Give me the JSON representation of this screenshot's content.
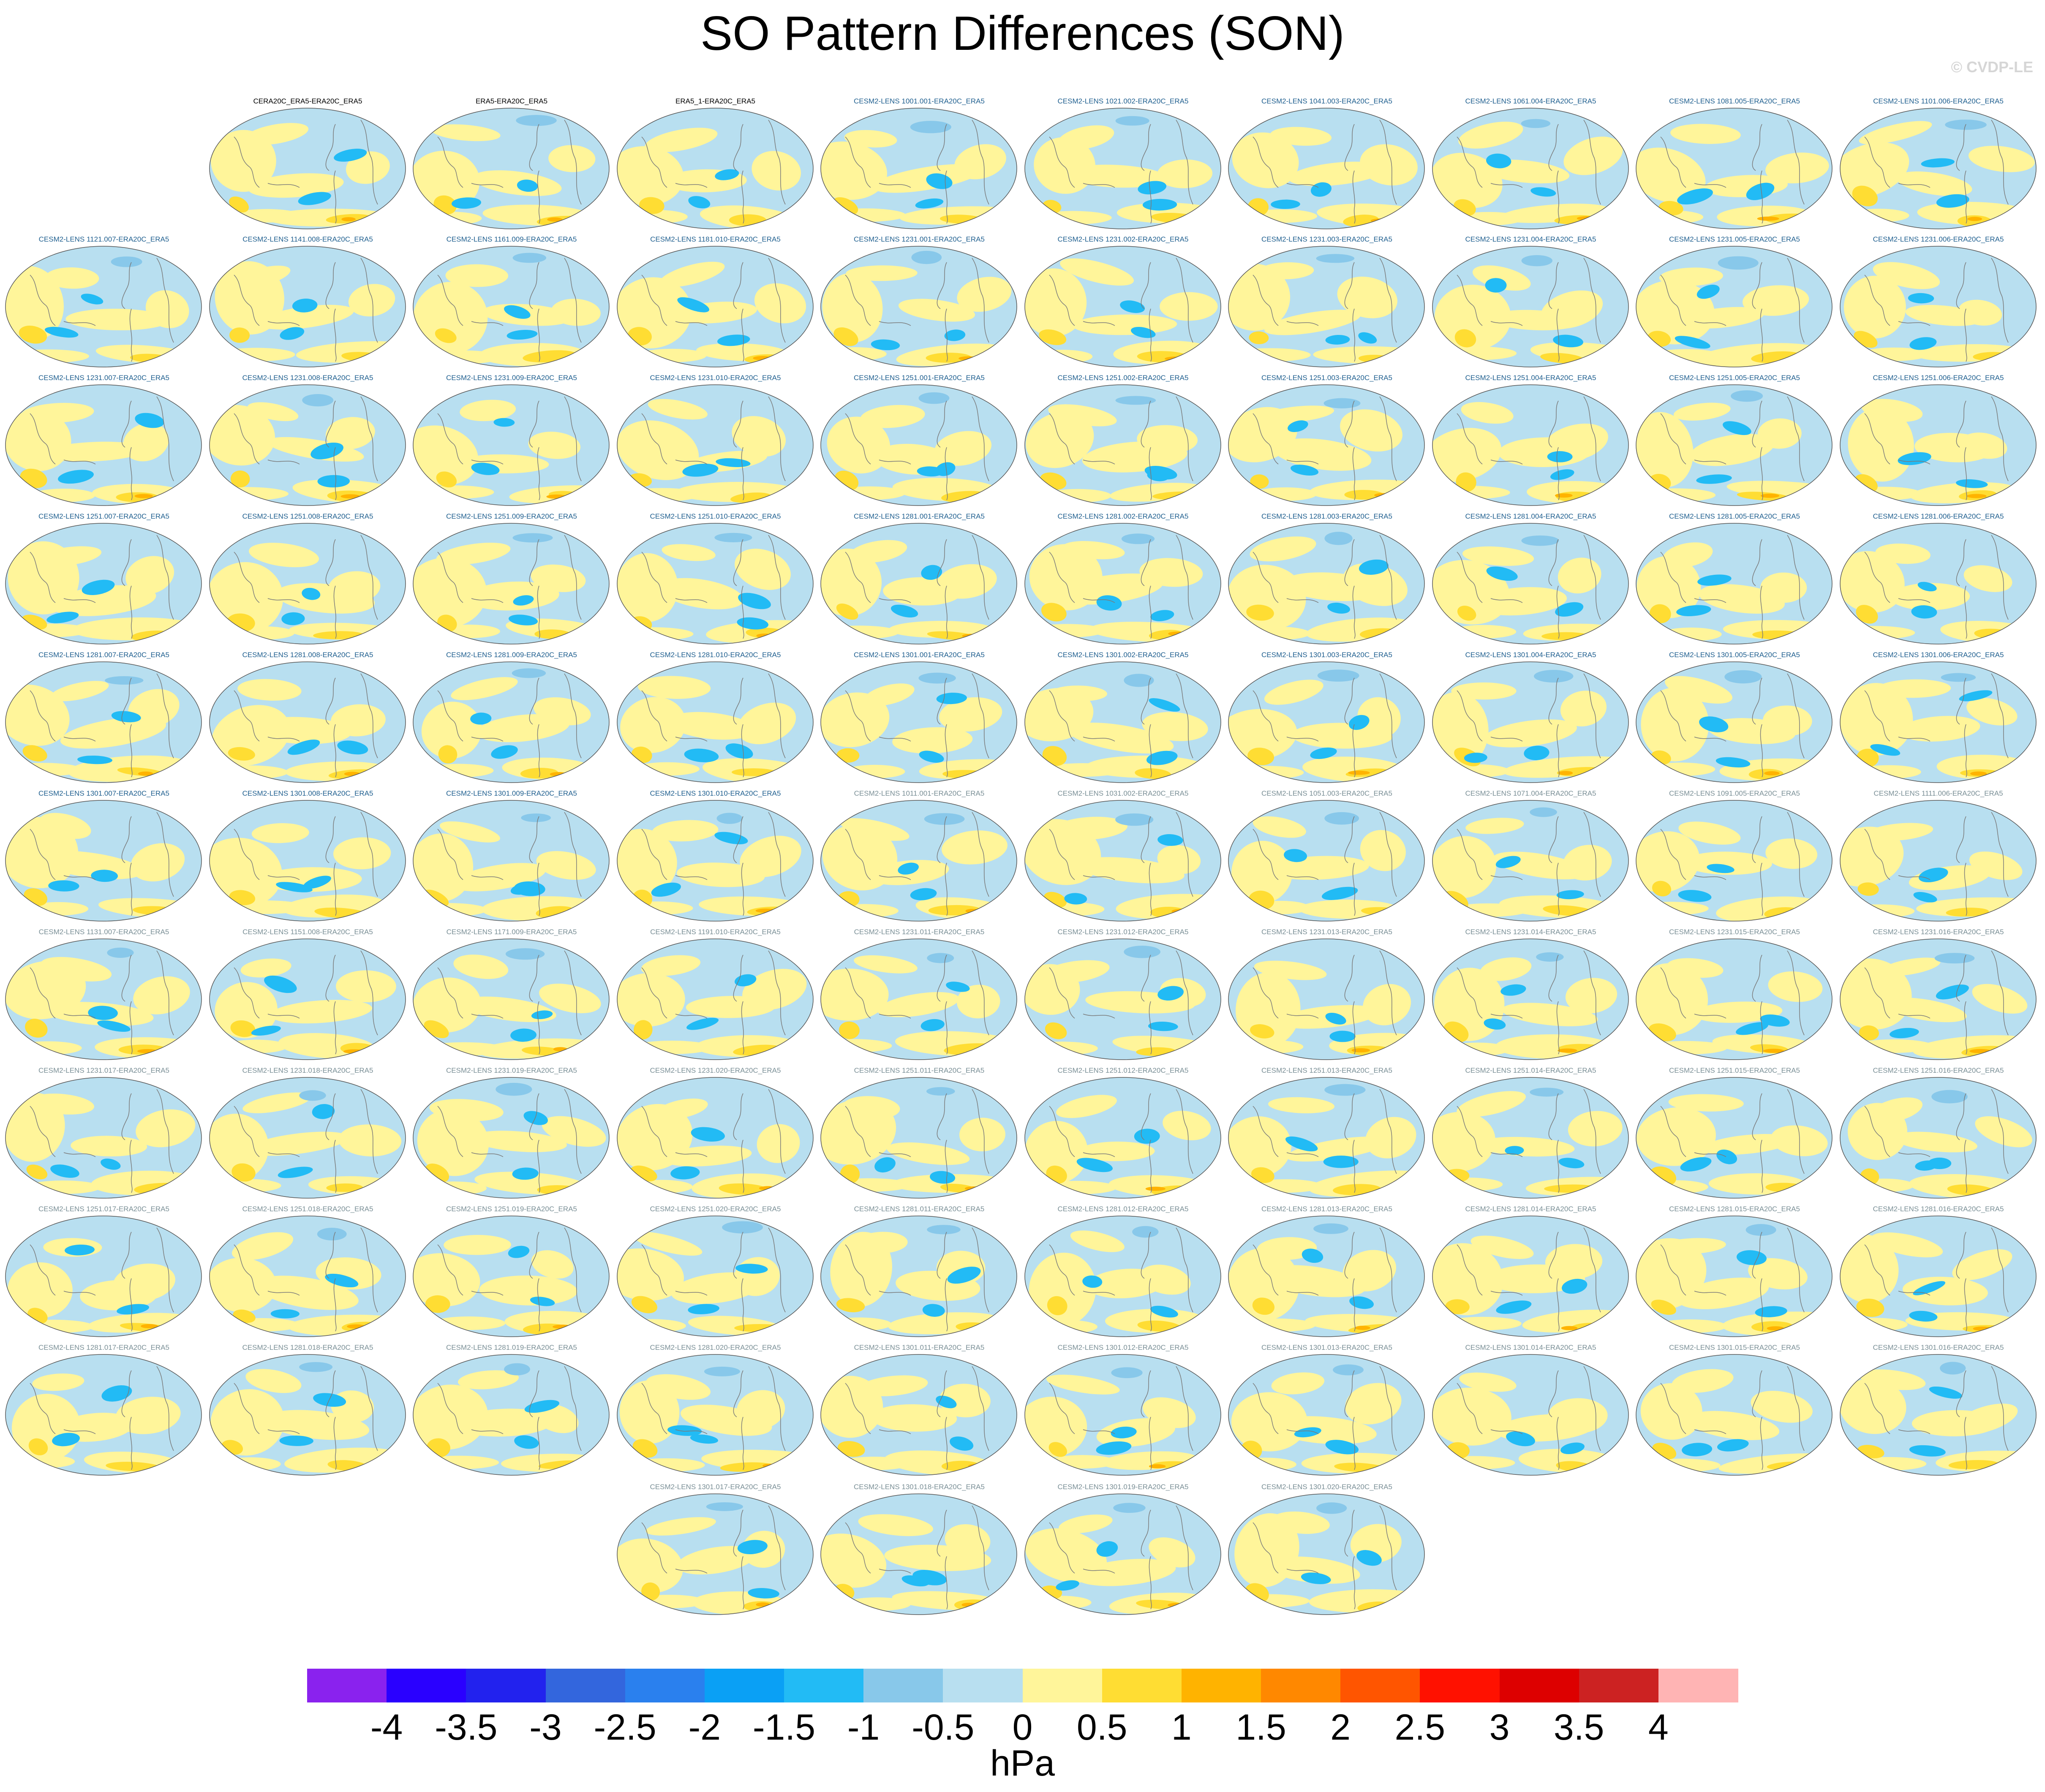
{
  "title": "SO Pattern Differences (SON)",
  "watermark": "© CVDP-LE",
  "colors": {
    "ocean_base": "#b8dff0",
    "land_outline": "#7a7a7a",
    "label_obs": "#000000",
    "label_group1": "#1f5f8f",
    "label_group2": "#7a8f96"
  },
  "panels": [
    {
      "label": "CERA20C_ERA5-ERA20C_ERA5",
      "group": "obs"
    },
    {
      "label": "ERA5-ERA20C_ERA5",
      "group": "obs"
    },
    {
      "label": "ERA5_1-ERA20C_ERA5",
      "group": "obs"
    },
    {
      "label": "CESM2-LENS 1001.001-ERA20C_ERA5",
      "group": "g1"
    },
    {
      "label": "CESM2-LENS 1021.002-ERA20C_ERA5",
      "group": "g1"
    },
    {
      "label": "CESM2-LENS 1041.003-ERA20C_ERA5",
      "group": "g1"
    },
    {
      "label": "CESM2-LENS 1061.004-ERA20C_ERA5",
      "group": "g1"
    },
    {
      "label": "CESM2-LENS 1081.005-ERA20C_ERA5",
      "group": "g1"
    },
    {
      "label": "CESM2-LENS 1101.006-ERA20C_ERA5",
      "group": "g1"
    },
    {
      "label": "CESM2-LENS 1121.007-ERA20C_ERA5",
      "group": "g1"
    },
    {
      "label": "CESM2-LENS 1141.008-ERA20C_ERA5",
      "group": "g1"
    },
    {
      "label": "CESM2-LENS 1161.009-ERA20C_ERA5",
      "group": "g1"
    },
    {
      "label": "CESM2-LENS 1181.010-ERA20C_ERA5",
      "group": "g1"
    },
    {
      "label": "CESM2-LENS 1231.001-ERA20C_ERA5",
      "group": "g1"
    },
    {
      "label": "CESM2-LENS 1231.002-ERA20C_ERA5",
      "group": "g1"
    },
    {
      "label": "CESM2-LENS 1231.003-ERA20C_ERA5",
      "group": "g1"
    },
    {
      "label": "CESM2-LENS 1231.004-ERA20C_ERA5",
      "group": "g1"
    },
    {
      "label": "CESM2-LENS 1231.005-ERA20C_ERA5",
      "group": "g1"
    },
    {
      "label": "CESM2-LENS 1231.006-ERA20C_ERA5",
      "group": "g1"
    },
    {
      "label": "CESM2-LENS 1231.007-ERA20C_ERA5",
      "group": "g1"
    },
    {
      "label": "CESM2-LENS 1231.008-ERA20C_ERA5",
      "group": "g1"
    },
    {
      "label": "CESM2-LENS 1231.009-ERA20C_ERA5",
      "group": "g1"
    },
    {
      "label": "CESM2-LENS 1231.010-ERA20C_ERA5",
      "group": "g1"
    },
    {
      "label": "CESM2-LENS 1251.001-ERA20C_ERA5",
      "group": "g1"
    },
    {
      "label": "CESM2-LENS 1251.002-ERA20C_ERA5",
      "group": "g1"
    },
    {
      "label": "CESM2-LENS 1251.003-ERA20C_ERA5",
      "group": "g1"
    },
    {
      "label": "CESM2-LENS 1251.004-ERA20C_ERA5",
      "group": "g1"
    },
    {
      "label": "CESM2-LENS 1251.005-ERA20C_ERA5",
      "group": "g1"
    },
    {
      "label": "CESM2-LENS 1251.006-ERA20C_ERA5",
      "group": "g1"
    },
    {
      "label": "CESM2-LENS 1251.007-ERA20C_ERA5",
      "group": "g1"
    },
    {
      "label": "CESM2-LENS 1251.008-ERA20C_ERA5",
      "group": "g1"
    },
    {
      "label": "CESM2-LENS 1251.009-ERA20C_ERA5",
      "group": "g1"
    },
    {
      "label": "CESM2-LENS 1251.010-ERA20C_ERA5",
      "group": "g1"
    },
    {
      "label": "CESM2-LENS 1281.001-ERA20C_ERA5",
      "group": "g1"
    },
    {
      "label": "CESM2-LENS 1281.002-ERA20C_ERA5",
      "group": "g1"
    },
    {
      "label": "CESM2-LENS 1281.003-ERA20C_ERA5",
      "group": "g1"
    },
    {
      "label": "CESM2-LENS 1281.004-ERA20C_ERA5",
      "group": "g1"
    },
    {
      "label": "CESM2-LENS 1281.005-ERA20C_ERA5",
      "group": "g1"
    },
    {
      "label": "CESM2-LENS 1281.006-ERA20C_ERA5",
      "group": "g1"
    },
    {
      "label": "CESM2-LENS 1281.007-ERA20C_ERA5",
      "group": "g1"
    },
    {
      "label": "CESM2-LENS 1281.008-ERA20C_ERA5",
      "group": "g1"
    },
    {
      "label": "CESM2-LENS 1281.009-ERA20C_ERA5",
      "group": "g1"
    },
    {
      "label": "CESM2-LENS 1281.010-ERA20C_ERA5",
      "group": "g1"
    },
    {
      "label": "CESM2-LENS 1301.001-ERA20C_ERA5",
      "group": "g1"
    },
    {
      "label": "CESM2-LENS 1301.002-ERA20C_ERA5",
      "group": "g1"
    },
    {
      "label": "CESM2-LENS 1301.003-ERA20C_ERA5",
      "group": "g1"
    },
    {
      "label": "CESM2-LENS 1301.004-ERA20C_ERA5",
      "group": "g1"
    },
    {
      "label": "CESM2-LENS 1301.005-ERA20C_ERA5",
      "group": "g1"
    },
    {
      "label": "CESM2-LENS 1301.006-ERA20C_ERA5",
      "group": "g1"
    },
    {
      "label": "CESM2-LENS 1301.007-ERA20C_ERA5",
      "group": "g1"
    },
    {
      "label": "CESM2-LENS 1301.008-ERA20C_ERA5",
      "group": "g1"
    },
    {
      "label": "CESM2-LENS 1301.009-ERA20C_ERA5",
      "group": "g1"
    },
    {
      "label": "CESM2-LENS 1301.010-ERA20C_ERA5",
      "group": "g1"
    },
    {
      "label": "CESM2-LENS 1011.001-ERA20C_ERA5",
      "group": "g2"
    },
    {
      "label": "CESM2-LENS 1031.002-ERA20C_ERA5",
      "group": "g2"
    },
    {
      "label": "CESM2-LENS 1051.003-ERA20C_ERA5",
      "group": "g2"
    },
    {
      "label": "CESM2-LENS 1071.004-ERA20C_ERA5",
      "group": "g2"
    },
    {
      "label": "CESM2-LENS 1091.005-ERA20C_ERA5",
      "group": "g2"
    },
    {
      "label": "CESM2-LENS 1111.006-ERA20C_ERA5",
      "group": "g2"
    },
    {
      "label": "CESM2-LENS 1131.007-ERA20C_ERA5",
      "group": "g2"
    },
    {
      "label": "CESM2-LENS 1151.008-ERA20C_ERA5",
      "group": "g2"
    },
    {
      "label": "CESM2-LENS 1171.009-ERA20C_ERA5",
      "group": "g2"
    },
    {
      "label": "CESM2-LENS 1191.010-ERA20C_ERA5",
      "group": "g2"
    },
    {
      "label": "CESM2-LENS 1231.011-ERA20C_ERA5",
      "group": "g2"
    },
    {
      "label": "CESM2-LENS 1231.012-ERA20C_ERA5",
      "group": "g2"
    },
    {
      "label": "CESM2-LENS 1231.013-ERA20C_ERA5",
      "group": "g2"
    },
    {
      "label": "CESM2-LENS 1231.014-ERA20C_ERA5",
      "group": "g2"
    },
    {
      "label": "CESM2-LENS 1231.015-ERA20C_ERA5",
      "group": "g2"
    },
    {
      "label": "CESM2-LENS 1231.016-ERA20C_ERA5",
      "group": "g2"
    },
    {
      "label": "CESM2-LENS 1231.017-ERA20C_ERA5",
      "group": "g2"
    },
    {
      "label": "CESM2-LENS 1231.018-ERA20C_ERA5",
      "group": "g2"
    },
    {
      "label": "CESM2-LENS 1231.019-ERA20C_ERA5",
      "group": "g2"
    },
    {
      "label": "CESM2-LENS 1231.020-ERA20C_ERA5",
      "group": "g2"
    },
    {
      "label": "CESM2-LENS 1251.011-ERA20C_ERA5",
      "group": "g2"
    },
    {
      "label": "CESM2-LENS 1251.012-ERA20C_ERA5",
      "group": "g2"
    },
    {
      "label": "CESM2-LENS 1251.013-ERA20C_ERA5",
      "group": "g2"
    },
    {
      "label": "CESM2-LENS 1251.014-ERA20C_ERA5",
      "group": "g2"
    },
    {
      "label": "CESM2-LENS 1251.015-ERA20C_ERA5",
      "group": "g2"
    },
    {
      "label": "CESM2-LENS 1251.016-ERA20C_ERA5",
      "group": "g2"
    },
    {
      "label": "CESM2-LENS 1251.017-ERA20C_ERA5",
      "group": "g2"
    },
    {
      "label": "CESM2-LENS 1251.018-ERA20C_ERA5",
      "group": "g2"
    },
    {
      "label": "CESM2-LENS 1251.019-ERA20C_ERA5",
      "group": "g2"
    },
    {
      "label": "CESM2-LENS 1251.020-ERA20C_ERA5",
      "group": "g2"
    },
    {
      "label": "CESM2-LENS 1281.011-ERA20C_ERA5",
      "group": "g2"
    },
    {
      "label": "CESM2-LENS 1281.012-ERA20C_ERA5",
      "group": "g2"
    },
    {
      "label": "CESM2-LENS 1281.013-ERA20C_ERA5",
      "group": "g2"
    },
    {
      "label": "CESM2-LENS 1281.014-ERA20C_ERA5",
      "group": "g2"
    },
    {
      "label": "CESM2-LENS 1281.015-ERA20C_ERA5",
      "group": "g2"
    },
    {
      "label": "CESM2-LENS 1281.016-ERA20C_ERA5",
      "group": "g2"
    },
    {
      "label": "CESM2-LENS 1281.017-ERA20C_ERA5",
      "group": "g2"
    },
    {
      "label": "CESM2-LENS 1281.018-ERA20C_ERA5",
      "group": "g2"
    },
    {
      "label": "CESM2-LENS 1281.019-ERA20C_ERA5",
      "group": "g2"
    },
    {
      "label": "CESM2-LENS 1281.020-ERA20C_ERA5",
      "group": "g2"
    },
    {
      "label": "CESM2-LENS 1301.011-ERA20C_ERA5",
      "group": "g2"
    },
    {
      "label": "CESM2-LENS 1301.012-ERA20C_ERA5",
      "group": "g2"
    },
    {
      "label": "CESM2-LENS 1301.013-ERA20C_ERA5",
      "group": "g2"
    },
    {
      "label": "CESM2-LENS 1301.014-ERA20C_ERA5",
      "group": "g2"
    },
    {
      "label": "CESM2-LENS 1301.015-ERA20C_ERA5",
      "group": "g2"
    },
    {
      "label": "CESM2-LENS 1301.016-ERA20C_ERA5",
      "group": "g2"
    },
    {
      "label": "CESM2-LENS 1301.017-ERA20C_ERA5",
      "group": "g2"
    },
    {
      "label": "CESM2-LENS 1301.018-ERA20C_ERA5",
      "group": "g2"
    },
    {
      "label": "CESM2-LENS 1301.019-ERA20C_ERA5",
      "group": "g2"
    },
    {
      "label": "CESM2-LENS 1301.020-ERA20C_ERA5",
      "group": "g2"
    }
  ],
  "colorbar": {
    "units": "hPa",
    "levels": [
      "-4",
      "-3.5",
      "-3",
      "-2.5",
      "-2",
      "-1.5",
      "-1",
      "-0.5",
      "0",
      "0.5",
      "1",
      "1.5",
      "2",
      "2.5",
      "3",
      "3.5",
      "4"
    ],
    "colors": [
      "#8a22ee",
      "#2a00ff",
      "#2222ee",
      "#3366dd",
      "#2a80ee",
      "#0aa0f5",
      "#22bbf5",
      "#88c8ea",
      "#b8dff0",
      "#fff59a",
      "#ffdd33",
      "#ffb300",
      "#ff8800",
      "#ff5500",
      "#ff1100",
      "#dd0000",
      "#cc2222",
      "#ffb4b4"
    ]
  }
}
